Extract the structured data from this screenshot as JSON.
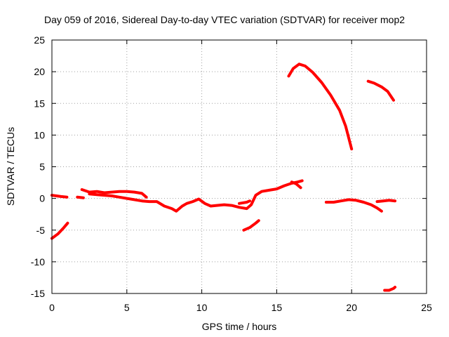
{
  "chart_data": {
    "type": "line",
    "title": "Day 059 of 2016, Sidereal Day-to-day VTEC variation (SDTVAR) for receiver mop2",
    "xlabel": "GPS time / hours",
    "ylabel": "SDTVAR / TECUs",
    "xlim": [
      0,
      25
    ],
    "ylim": [
      -15,
      25
    ],
    "xticks": [
      0,
      5,
      10,
      15,
      20,
      25
    ],
    "yticks": [
      -15,
      -10,
      -5,
      0,
      5,
      10,
      15,
      20,
      25
    ],
    "xtick_labels": [
      "0",
      "5",
      "10",
      "15",
      "20",
      "25"
    ],
    "ytick_labels": [
      "-15",
      "-10",
      "-5",
      "0",
      "5",
      "10",
      "15",
      "20",
      "25"
    ],
    "grid": true,
    "legend": "none",
    "series_color": "#ff0000",
    "series": [
      {
        "name": "seg1",
        "points": [
          [
            0.0,
            0.5
          ],
          [
            0.3,
            0.4
          ],
          [
            0.6,
            0.3
          ],
          [
            1.0,
            0.2
          ]
        ]
      },
      {
        "name": "seg2",
        "points": [
          [
            0.0,
            -6.3
          ],
          [
            0.4,
            -5.6
          ],
          [
            0.8,
            -4.6
          ],
          [
            1.05,
            -3.9
          ]
        ]
      },
      {
        "name": "seg3",
        "points": [
          [
            1.7,
            0.2
          ],
          [
            2.1,
            0.1
          ]
        ]
      },
      {
        "name": "seg4",
        "points": [
          [
            2.0,
            1.4
          ],
          [
            2.5,
            1.0
          ],
          [
            3.0,
            1.1
          ],
          [
            3.5,
            0.9
          ],
          [
            4.0,
            1.0
          ],
          [
            4.5,
            1.1
          ],
          [
            5.0,
            1.1
          ],
          [
            5.5,
            1.0
          ],
          [
            6.0,
            0.8
          ],
          [
            6.3,
            0.2
          ]
        ]
      },
      {
        "name": "seg5",
        "points": [
          [
            2.5,
            0.7
          ],
          [
            3.0,
            0.6
          ],
          [
            3.5,
            0.5
          ],
          [
            4.0,
            0.4
          ],
          [
            4.5,
            0.2
          ],
          [
            5.0,
            0.0
          ],
          [
            5.5,
            -0.2
          ],
          [
            6.0,
            -0.4
          ],
          [
            6.5,
            -0.5
          ],
          [
            7.0,
            -0.5
          ],
          [
            7.5,
            -1.2
          ],
          [
            8.0,
            -1.6
          ],
          [
            8.3,
            -2.0
          ],
          [
            8.7,
            -1.2
          ],
          [
            9.0,
            -0.8
          ],
          [
            9.4,
            -0.5
          ],
          [
            9.8,
            -0.1
          ],
          [
            10.2,
            -0.8
          ],
          [
            10.6,
            -1.2
          ],
          [
            11.0,
            -1.1
          ],
          [
            11.5,
            -1.0
          ],
          [
            12.0,
            -1.1
          ],
          [
            12.5,
            -1.4
          ],
          [
            13.0,
            -1.6
          ],
          [
            13.3,
            -1.0
          ],
          [
            13.6,
            0.5
          ],
          [
            14.0,
            1.1
          ],
          [
            14.5,
            1.3
          ],
          [
            15.0,
            1.5
          ],
          [
            15.5,
            2.0
          ],
          [
            16.0,
            2.4
          ],
          [
            16.4,
            2.6
          ],
          [
            16.7,
            2.8
          ]
        ]
      },
      {
        "name": "seg6",
        "points": [
          [
            12.5,
            -0.8
          ],
          [
            13.0,
            -0.6
          ],
          [
            13.2,
            -0.4
          ]
        ]
      },
      {
        "name": "seg7",
        "points": [
          [
            16.0,
            2.6
          ],
          [
            16.3,
            2.3
          ],
          [
            16.6,
            1.7
          ]
        ]
      },
      {
        "name": "seg8",
        "points": [
          [
            12.8,
            -5.0
          ],
          [
            13.2,
            -4.6
          ],
          [
            13.6,
            -3.9
          ],
          [
            13.8,
            -3.5
          ]
        ]
      },
      {
        "name": "seg9",
        "points": [
          [
            15.8,
            19.3
          ],
          [
            16.1,
            20.5
          ],
          [
            16.5,
            21.2
          ],
          [
            16.9,
            20.9
          ],
          [
            17.4,
            19.9
          ],
          [
            18.0,
            18.3
          ],
          [
            18.6,
            16.3
          ],
          [
            19.2,
            13.9
          ],
          [
            19.6,
            11.4
          ],
          [
            20.0,
            7.8
          ]
        ]
      },
      {
        "name": "seg10",
        "points": [
          [
            18.3,
            -0.6
          ],
          [
            18.8,
            -0.6
          ],
          [
            19.3,
            -0.4
          ],
          [
            19.8,
            -0.2
          ],
          [
            20.3,
            -0.3
          ],
          [
            20.8,
            -0.6
          ],
          [
            21.3,
            -1.0
          ],
          [
            21.7,
            -1.5
          ],
          [
            22.0,
            -2.0
          ]
        ]
      },
      {
        "name": "seg11",
        "points": [
          [
            21.7,
            -0.5
          ],
          [
            22.1,
            -0.4
          ],
          [
            22.5,
            -0.3
          ],
          [
            22.9,
            -0.4
          ]
        ]
      },
      {
        "name": "seg12",
        "points": [
          [
            21.1,
            18.5
          ],
          [
            21.5,
            18.2
          ],
          [
            22.0,
            17.6
          ],
          [
            22.4,
            16.9
          ],
          [
            22.8,
            15.5
          ]
        ]
      },
      {
        "name": "seg13",
        "points": [
          [
            22.2,
            -14.5
          ],
          [
            22.5,
            -14.5
          ],
          [
            22.8,
            -14.2
          ],
          [
            22.9,
            -14.0
          ]
        ]
      }
    ]
  }
}
